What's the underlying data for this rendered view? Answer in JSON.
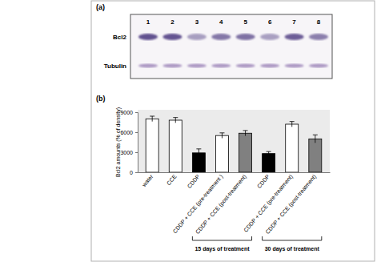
{
  "blot": {
    "panel_label": "(a)",
    "lanes": [
      "1",
      "2",
      "3",
      "4",
      "5",
      "6",
      "7",
      "8"
    ],
    "rows": [
      "Bcl2",
      "Tubulin"
    ]
  },
  "chart_data": {
    "type": "bar",
    "title": "(b)",
    "y_label": "Bcl2 amounts (% of density)",
    "categories": [
      "water",
      "CCE",
      "CDDP",
      "CDDP + CCE (pre-treatment )",
      "CDDP + CCE (post-treatment)",
      "CDDP",
      "CDDP + CCE (pre-treatment)",
      "CDDP + CCE (post-treatment)"
    ],
    "values": [
      8000,
      7800,
      2900,
      5500,
      5850,
      2800,
      7200,
      5000
    ],
    "errors": [
      400,
      400,
      600,
      400,
      400,
      300,
      400,
      600
    ],
    "colors": [
      "#ffffff",
      "#ffffff",
      "#000000",
      "#ffffff",
      "#808080",
      "#000000",
      "#ffffff",
      "#808080"
    ],
    "groups": [
      {
        "label": "15 days  of treatment",
        "categories": [
          2,
          3,
          4
        ]
      },
      {
        "label": "30 days  of treatment",
        "categories": [
          5,
          6,
          7
        ]
      }
    ],
    "ylim": [
      0,
      9000
    ],
    "yticks": [
      0,
      3000,
      6000,
      9000
    ],
    "grid": false
  }
}
